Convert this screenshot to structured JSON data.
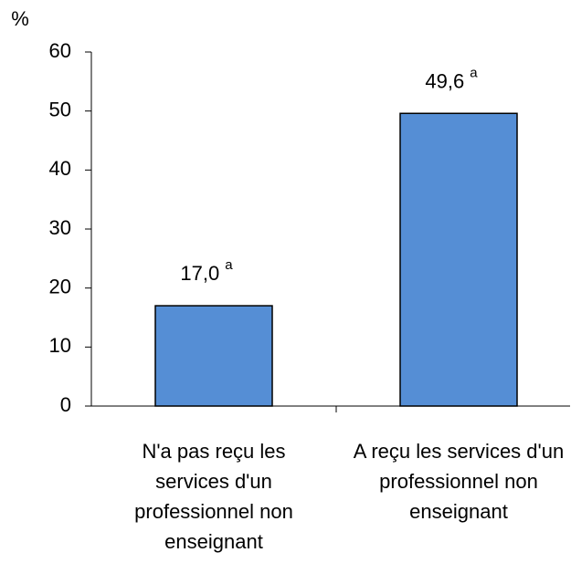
{
  "chart_data": {
    "type": "bar",
    "y_label": "%",
    "categories": [
      "N'a pas reçu les services d'un professionnel non enseignant",
      "A reçu les services d'un professionnel non enseignant"
    ],
    "values": [
      17.0,
      49.6
    ],
    "value_labels": [
      "17,0",
      "49,6"
    ],
    "value_label_notes": [
      "a",
      "a"
    ],
    "color": "#558ed5",
    "ylim": [
      0,
      60
    ],
    "yticks": [
      0,
      10,
      20,
      30,
      40,
      50,
      60
    ]
  }
}
